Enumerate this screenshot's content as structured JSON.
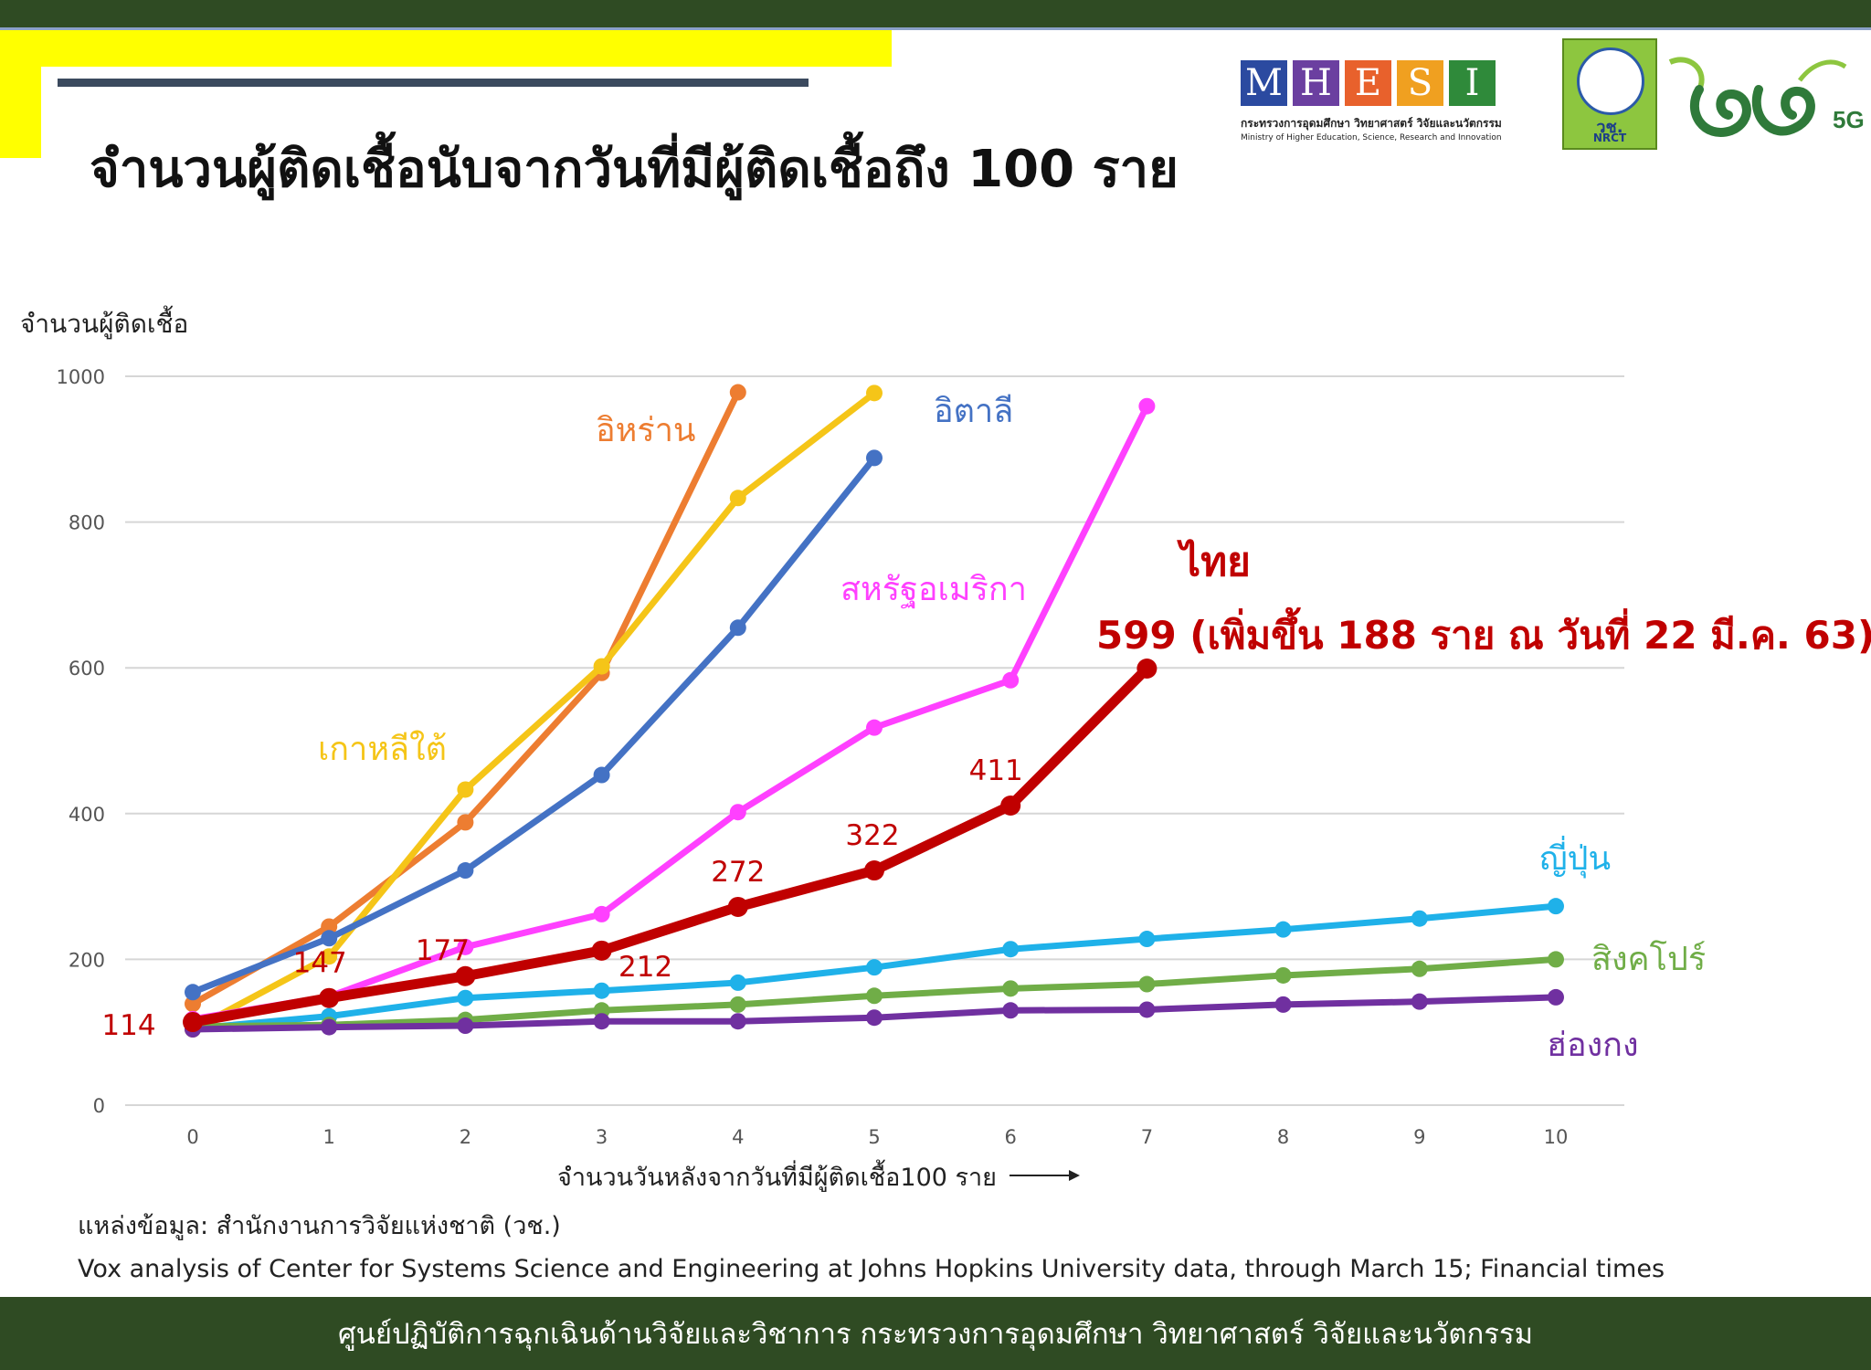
{
  "title": "จำนวนผู้ติดเชื้อนับจากวันที่มีผู้ติดเชื้อถึง 100 ราย",
  "logos": {
    "mhesi_letters": [
      "M",
      "H",
      "E",
      "S",
      "I"
    ],
    "mhesi_colors": [
      "#2b4aa0",
      "#6b3fa0",
      "#e8612c",
      "#f0a020",
      "#2f8a3a"
    ],
    "mhesi_thai": "กระทรวงการอุดมศึกษา วิทยาศาสตร์ วิจัยและนวัตกรรม",
    "mhesi_english": "Ministry of Higher Education, Science, Research and Innovation",
    "nrct_thai": "วช.",
    "nrct_english": "NRCT",
    "g5_label": "5G"
  },
  "chart_data": {
    "type": "line",
    "ylabel": "จำนวนผู้ติดเชื้อ",
    "xlabel": "จำนวนวันหลังจากวันที่มีผู้ติดเชื้อ100 ราย",
    "x": [
      0,
      1,
      2,
      3,
      4,
      5,
      6,
      7,
      8,
      9,
      10
    ],
    "ylim": [
      0,
      1000
    ],
    "yticks": [
      0,
      200,
      400,
      600,
      800,
      1000
    ],
    "grid": true,
    "series": [
      {
        "name": "อิหร่าน",
        "color": "#ed7d31",
        "x": [
          0,
          1,
          2,
          3,
          4
        ],
        "values": [
          139,
          245,
          388,
          593,
          978
        ]
      },
      {
        "name": "เกาหลีใต้",
        "color": "#f5c518",
        "x": [
          0,
          1,
          2,
          3,
          4,
          5
        ],
        "values": [
          104,
          204,
          433,
          602,
          833,
          977
        ]
      },
      {
        "name": "อิตาลี",
        "color": "#4472c4",
        "x": [
          0,
          1,
          2,
          3,
          4,
          5
        ],
        "values": [
          155,
          229,
          322,
          453,
          655,
          888
        ]
      },
      {
        "name": "สหรัฐอเมริกา",
        "color": "#ff40ff",
        "x": [
          0,
          1,
          2,
          3,
          4,
          5,
          6,
          7
        ],
        "values": [
          118,
          149,
          217,
          262,
          402,
          518,
          583,
          959
        ]
      },
      {
        "name": "ไทย",
        "color": "#c00000",
        "x": [
          0,
          1,
          2,
          3,
          4,
          5,
          6,
          7
        ],
        "values": [
          114,
          147,
          177,
          212,
          272,
          322,
          411,
          599
        ]
      },
      {
        "name": "ญี่ปุ่น",
        "color": "#1fb1e9",
        "x": [
          0,
          1,
          2,
          3,
          4,
          5,
          6,
          7,
          8,
          9,
          10
        ],
        "values": [
          105,
          122,
          147,
          157,
          168,
          189,
          214,
          228,
          241,
          256,
          273
        ]
      },
      {
        "name": "สิงคโปร์",
        "color": "#70ad47",
        "x": [
          0,
          1,
          2,
          3,
          4,
          5,
          6,
          7,
          8,
          9,
          10
        ],
        "values": [
          108,
          110,
          117,
          130,
          138,
          150,
          160,
          166,
          178,
          187,
          200
        ]
      },
      {
        "name": "ฮ่องกง",
        "color": "#7030a0",
        "x": [
          0,
          1,
          2,
          3,
          4,
          5,
          6,
          7,
          8,
          9,
          10
        ],
        "values": [
          104,
          107,
          109,
          115,
          115,
          120,
          130,
          131,
          138,
          142,
          148
        ]
      }
    ],
    "thai_point_labels": [
      "114",
      "147",
      "177",
      "212",
      "272",
      "322",
      "411"
    ],
    "thai_annotation": "599 (เพิ่มขึ้น 188 ราย ณ วันที่ 22 มี.ค. 63)"
  },
  "source_line1": "แหล่งข้อมูล: สำนักงานการวิจัยแห่งชาติ (วช.)",
  "source_line2": "Vox analysis of Center for Systems Science and Engineering at Johns Hopkins University data, through March 15; Financial times",
  "footer": "ศูนย์ปฏิบัติการฉุกเฉินด้านวิจัยและวิชาการ กระทรวงการอุดมศึกษา วิทยาศาสตร์ วิจัยและนวัตกรรม"
}
